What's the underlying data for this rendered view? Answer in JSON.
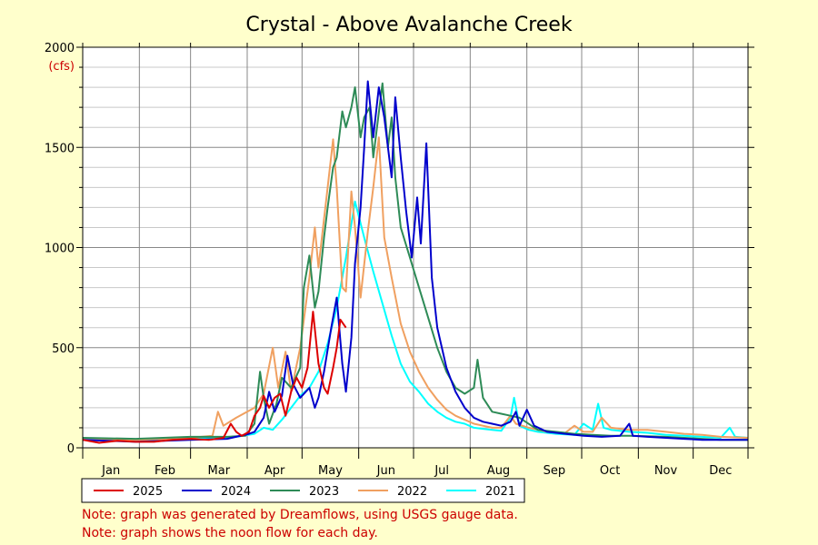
{
  "chart_data": {
    "type": "line",
    "title": "Crystal - Above Avalanche Creek",
    "ylabel": "(cfs)",
    "xlabel": "",
    "ylim": [
      0,
      2000
    ],
    "yticks": [
      0,
      500,
      1000,
      1500,
      2000
    ],
    "x_unit": "day of year",
    "xlim": [
      1,
      365
    ],
    "months": [
      "Jan",
      "Feb",
      "Mar",
      "Apr",
      "May",
      "Jun",
      "Jul",
      "Aug",
      "Sep",
      "Oct",
      "Nov",
      "Dec"
    ],
    "grid": true,
    "legend_position": "bottom",
    "series": [
      {
        "name": "2021",
        "color": "#00ffff",
        "points": [
          [
            1,
            40
          ],
          [
            30,
            35
          ],
          [
            60,
            45
          ],
          [
            85,
            55
          ],
          [
            95,
            70
          ],
          [
            100,
            100
          ],
          [
            105,
            90
          ],
          [
            110,
            140
          ],
          [
            115,
            200
          ],
          [
            120,
            260
          ],
          [
            125,
            300
          ],
          [
            130,
            380
          ],
          [
            135,
            520
          ],
          [
            140,
            700
          ],
          [
            145,
            950
          ],
          [
            150,
            1230
          ],
          [
            155,
            1050
          ],
          [
            160,
            880
          ],
          [
            165,
            720
          ],
          [
            170,
            560
          ],
          [
            175,
            420
          ],
          [
            180,
            330
          ],
          [
            185,
            280
          ],
          [
            190,
            220
          ],
          [
            195,
            180
          ],
          [
            200,
            150
          ],
          [
            205,
            130
          ],
          [
            210,
            120
          ],
          [
            215,
            100
          ],
          [
            220,
            95
          ],
          [
            225,
            90
          ],
          [
            230,
            85
          ],
          [
            235,
            150
          ],
          [
            237,
            250
          ],
          [
            240,
            110
          ],
          [
            245,
            90
          ],
          [
            250,
            80
          ],
          [
            260,
            70
          ],
          [
            270,
            65
          ],
          [
            275,
            120
          ],
          [
            280,
            90
          ],
          [
            283,
            220
          ],
          [
            286,
            100
          ],
          [
            290,
            90
          ],
          [
            300,
            80
          ],
          [
            310,
            75
          ],
          [
            320,
            65
          ],
          [
            330,
            60
          ],
          [
            340,
            55
          ],
          [
            350,
            50
          ],
          [
            355,
            100
          ],
          [
            358,
            55
          ],
          [
            365,
            50
          ]
        ]
      },
      {
        "name": "2022",
        "color": "#f0a060",
        "points": [
          [
            1,
            40
          ],
          [
            30,
            40
          ],
          [
            50,
            45
          ],
          [
            60,
            50
          ],
          [
            72,
            60
          ],
          [
            75,
            180
          ],
          [
            78,
            110
          ],
          [
            85,
            150
          ],
          [
            95,
            200
          ],
          [
            100,
            270
          ],
          [
            105,
            500
          ],
          [
            108,
            300
          ],
          [
            112,
            480
          ],
          [
            115,
            280
          ],
          [
            120,
            500
          ],
          [
            125,
            850
          ],
          [
            128,
            1100
          ],
          [
            130,
            900
          ],
          [
            135,
            1300
          ],
          [
            138,
            1540
          ],
          [
            140,
            1300
          ],
          [
            143,
            800
          ],
          [
            145,
            780
          ],
          [
            148,
            1280
          ],
          [
            150,
            1100
          ],
          [
            153,
            750
          ],
          [
            157,
            1080
          ],
          [
            160,
            1300
          ],
          [
            163,
            1550
          ],
          [
            166,
            1050
          ],
          [
            170,
            850
          ],
          [
            175,
            620
          ],
          [
            180,
            480
          ],
          [
            185,
            380
          ],
          [
            190,
            300
          ],
          [
            195,
            240
          ],
          [
            200,
            190
          ],
          [
            205,
            160
          ],
          [
            210,
            140
          ],
          [
            215,
            120
          ],
          [
            220,
            110
          ],
          [
            225,
            100
          ],
          [
            230,
            100
          ],
          [
            235,
            160
          ],
          [
            238,
            120
          ],
          [
            245,
            100
          ],
          [
            250,
            90
          ],
          [
            255,
            80
          ],
          [
            265,
            75
          ],
          [
            270,
            110
          ],
          [
            275,
            80
          ],
          [
            280,
            80
          ],
          [
            285,
            150
          ],
          [
            290,
            100
          ],
          [
            300,
            90
          ],
          [
            310,
            90
          ],
          [
            320,
            80
          ],
          [
            330,
            70
          ],
          [
            340,
            65
          ],
          [
            350,
            55
          ],
          [
            365,
            50
          ]
        ]
      },
      {
        "name": "2023",
        "color": "#2e8b57",
        "points": [
          [
            1,
            50
          ],
          [
            30,
            45
          ],
          [
            60,
            55
          ],
          [
            80,
            55
          ],
          [
            90,
            60
          ],
          [
            95,
            120
          ],
          [
            98,
            380
          ],
          [
            100,
            250
          ],
          [
            103,
            120
          ],
          [
            107,
            220
          ],
          [
            110,
            350
          ],
          [
            115,
            300
          ],
          [
            120,
            400
          ],
          [
            122,
            800
          ],
          [
            125,
            960
          ],
          [
            128,
            700
          ],
          [
            130,
            780
          ],
          [
            133,
            1050
          ],
          [
            135,
            1200
          ],
          [
            138,
            1400
          ],
          [
            140,
            1450
          ],
          [
            143,
            1680
          ],
          [
            145,
            1600
          ],
          [
            148,
            1700
          ],
          [
            150,
            1800
          ],
          [
            153,
            1550
          ],
          [
            155,
            1650
          ],
          [
            158,
            1700
          ],
          [
            160,
            1450
          ],
          [
            162,
            1600
          ],
          [
            165,
            1820
          ],
          [
            168,
            1500
          ],
          [
            170,
            1650
          ],
          [
            172,
            1350
          ],
          [
            175,
            1100
          ],
          [
            180,
            950
          ],
          [
            185,
            800
          ],
          [
            190,
            650
          ],
          [
            195,
            500
          ],
          [
            200,
            380
          ],
          [
            205,
            300
          ],
          [
            210,
            270
          ],
          [
            215,
            300
          ],
          [
            217,
            440
          ],
          [
            220,
            250
          ],
          [
            225,
            180
          ],
          [
            230,
            170
          ],
          [
            235,
            160
          ],
          [
            240,
            150
          ],
          [
            250,
            90
          ],
          [
            260,
            80
          ],
          [
            270,
            70
          ],
          [
            280,
            65
          ],
          [
            290,
            60
          ],
          [
            300,
            60
          ],
          [
            310,
            58
          ],
          [
            320,
            55
          ],
          [
            330,
            50
          ],
          [
            340,
            45
          ],
          [
            350,
            40
          ],
          [
            360,
            40
          ],
          [
            365,
            40
          ]
        ]
      },
      {
        "name": "2024",
        "color": "#0000cc",
        "points": [
          [
            1,
            40
          ],
          [
            30,
            30
          ],
          [
            60,
            40
          ],
          [
            80,
            45
          ],
          [
            92,
            70
          ],
          [
            95,
            80
          ],
          [
            100,
            150
          ],
          [
            103,
            280
          ],
          [
            106,
            180
          ],
          [
            110,
            260
          ],
          [
            113,
            460
          ],
          [
            116,
            320
          ],
          [
            120,
            250
          ],
          [
            125,
            300
          ],
          [
            128,
            200
          ],
          [
            130,
            250
          ],
          [
            133,
            380
          ],
          [
            137,
            600
          ],
          [
            140,
            750
          ],
          [
            143,
            420
          ],
          [
            145,
            280
          ],
          [
            148,
            550
          ],
          [
            150,
            920
          ],
          [
            153,
            1200
          ],
          [
            155,
            1500
          ],
          [
            157,
            1830
          ],
          [
            160,
            1550
          ],
          [
            163,
            1800
          ],
          [
            166,
            1650
          ],
          [
            170,
            1350
          ],
          [
            172,
            1750
          ],
          [
            175,
            1450
          ],
          [
            178,
            1180
          ],
          [
            181,
            950
          ],
          [
            184,
            1250
          ],
          [
            186,
            1020
          ],
          [
            189,
            1520
          ],
          [
            192,
            850
          ],
          [
            195,
            600
          ],
          [
            200,
            400
          ],
          [
            205,
            280
          ],
          [
            210,
            200
          ],
          [
            215,
            150
          ],
          [
            220,
            130
          ],
          [
            225,
            120
          ],
          [
            230,
            110
          ],
          [
            235,
            130
          ],
          [
            238,
            180
          ],
          [
            240,
            110
          ],
          [
            244,
            190
          ],
          [
            248,
            110
          ],
          [
            255,
            80
          ],
          [
            265,
            70
          ],
          [
            275,
            60
          ],
          [
            285,
            55
          ],
          [
            295,
            60
          ],
          [
            300,
            120
          ],
          [
            302,
            60
          ],
          [
            310,
            55
          ],
          [
            320,
            50
          ],
          [
            330,
            45
          ],
          [
            340,
            40
          ],
          [
            350,
            40
          ],
          [
            365,
            40
          ]
        ]
      },
      {
        "name": "2025",
        "color": "#dd0000",
        "points": [
          [
            1,
            40
          ],
          [
            10,
            25
          ],
          [
            20,
            35
          ],
          [
            30,
            30
          ],
          [
            40,
            30
          ],
          [
            50,
            40
          ],
          [
            60,
            45
          ],
          [
            70,
            40
          ],
          [
            78,
            50
          ],
          [
            82,
            120
          ],
          [
            85,
            80
          ],
          [
            88,
            60
          ],
          [
            92,
            80
          ],
          [
            95,
            160
          ],
          [
            98,
            200
          ],
          [
            100,
            260
          ],
          [
            103,
            200
          ],
          [
            106,
            250
          ],
          [
            109,
            270
          ],
          [
            112,
            160
          ],
          [
            115,
            280
          ],
          [
            118,
            350
          ],
          [
            121,
            300
          ],
          [
            124,
            400
          ],
          [
            127,
            680
          ],
          [
            130,
            420
          ],
          [
            133,
            300
          ],
          [
            135,
            270
          ],
          [
            138,
            400
          ],
          [
            140,
            500
          ],
          [
            142,
            640
          ],
          [
            145,
            600
          ]
        ]
      }
    ]
  },
  "notes": [
    "Note: graph was generated by Dreamflows, using USGS gauge data.",
    "Note: graph shows the noon flow for each day."
  ]
}
